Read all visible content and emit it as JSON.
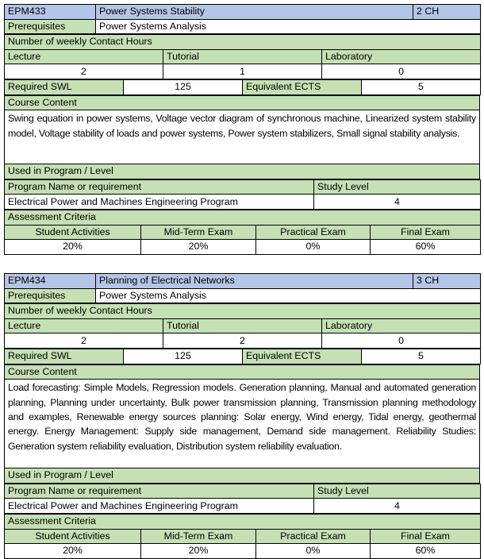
{
  "colors": {
    "header_blue": "#b4c6e7",
    "label_green": "#c5e0b4"
  },
  "courses": [
    {
      "code": "EPM433",
      "title": "Power Systems Stability",
      "credit_hours": "2 CH",
      "prerequisites_label": "Prerequisites",
      "prerequisites": "Power Systems Analysis",
      "contact_hours_label": "Number of weekly Contact Hours",
      "lecture_label": "Lecture",
      "tutorial_label": "Tutorial",
      "laboratory_label": "Laboratory",
      "lecture": "2",
      "tutorial": "1",
      "laboratory": "0",
      "swl_label": "Required SWL",
      "swl": "125",
      "ects_label": "Equivalent ECTS",
      "ects": "5",
      "content_label": "Course Content",
      "content": "Swing equation in power systems, Voltage vector diagram of synchronous machine, Linearized system stability model, Voltage stability of loads and power systems, Power system stabilizers, Small signal stability analysis.",
      "used_label": "Used in Program / Level",
      "program_header": "Program Name or requirement",
      "level_header": "Study Level",
      "program": "Electrical Power and Machines Engineering Program",
      "level": "4",
      "assessment_label": "Assessment Criteria",
      "assessment_headers": [
        "Student Activities",
        "Mid-Term Exam",
        "Practical Exam",
        "Final Exam"
      ],
      "assessment_values": [
        "20%",
        "20%",
        "0%",
        "60%"
      ]
    },
    {
      "code": "EPM434",
      "title": "Planning of Electrical Networks",
      "credit_hours": "3 CH",
      "prerequisites_label": "Prerequisites",
      "prerequisites": "Power Systems Analysis",
      "contact_hours_label": "Number of weekly Contact Hours",
      "lecture_label": "Lecture",
      "tutorial_label": "Tutorial",
      "laboratory_label": "Laboratory",
      "lecture": "2",
      "tutorial": "2",
      "laboratory": "0",
      "swl_label": "Required SWL",
      "swl": "125",
      "ects_label": "Equivalent ECTS",
      "ects": "5",
      "content_label": "Course Content",
      "content": "Load forecasting: Simple Models, Regression models. Generation planning, Manual and automated generation planning, Planning under uncertainty, Bulk power transmission planning, Transmission planning methodology and examples, Renewable energy sources planning: Solar energy, Wind energy, Tidal energy, geothermal energy. Energy Management: Supply side management, Demand side management. Reliability Studies: Generation system reliability evaluation, Distribution system reliability evaluation.",
      "used_label": "Used in Program / Level",
      "program_header": "Program Name or requirement",
      "level_header": "Study Level",
      "program": "Electrical Power and Machines Engineering Program",
      "level": "4",
      "assessment_label": "Assessment Criteria",
      "assessment_headers": [
        "Student Activities",
        "Mid-Term Exam",
        "Practical Exam",
        "Final Exam"
      ],
      "assessment_values": [
        "20%",
        "20%",
        "0%",
        "60%"
      ]
    }
  ]
}
